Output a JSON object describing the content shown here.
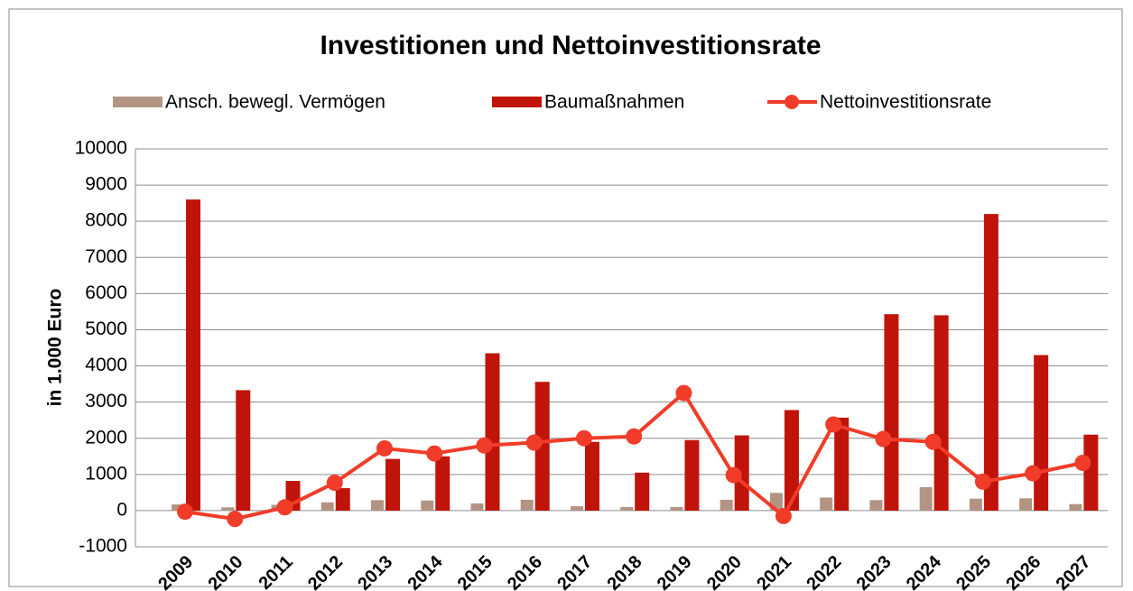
{
  "chart_data": {
    "type": "bar_line",
    "title": "Investitionen und Nettoinvestitionsrate",
    "y_label": "in 1.000 Euro",
    "categories": [
      "2009",
      "2010",
      "2011",
      "2012",
      "2013",
      "2014",
      "2015",
      "2016",
      "2017",
      "2018",
      "2019",
      "2020",
      "2021",
      "2022",
      "2023",
      "2024",
      "2025",
      "2026",
      "2027"
    ],
    "series": [
      {
        "name": "Ansch. bewegl. Vermögen",
        "type": "bar",
        "color": "#b39483",
        "values": [
          170,
          90,
          160,
          230,
          290,
          280,
          200,
          300,
          120,
          100,
          100,
          300,
          490,
          360,
          290,
          650,
          330,
          340,
          180
        ]
      },
      {
        "name": "Baumaßnahmen",
        "type": "bar",
        "color": "#c0140a",
        "values": [
          8600,
          3330,
          820,
          620,
          1430,
          1500,
          4350,
          3560,
          1900,
          1050,
          1950,
          2080,
          2780,
          2570,
          5430,
          5400,
          8200,
          4300,
          2100
        ]
      },
      {
        "name": "Nettoinvestitionsrate",
        "type": "line",
        "color": "#f03c28",
        "values": [
          -30,
          -230,
          90,
          770,
          1720,
          1580,
          1800,
          1880,
          2000,
          2050,
          3250,
          980,
          -150,
          2380,
          1980,
          1900,
          800,
          1030,
          1320
        ]
      }
    ],
    "ylim": [
      -1000,
      10000
    ],
    "yticks": [
      -1000,
      0,
      1000,
      2000,
      3000,
      4000,
      5000,
      6000,
      7000,
      8000,
      9000,
      10000
    ],
    "grid": true,
    "legend": "top"
  }
}
